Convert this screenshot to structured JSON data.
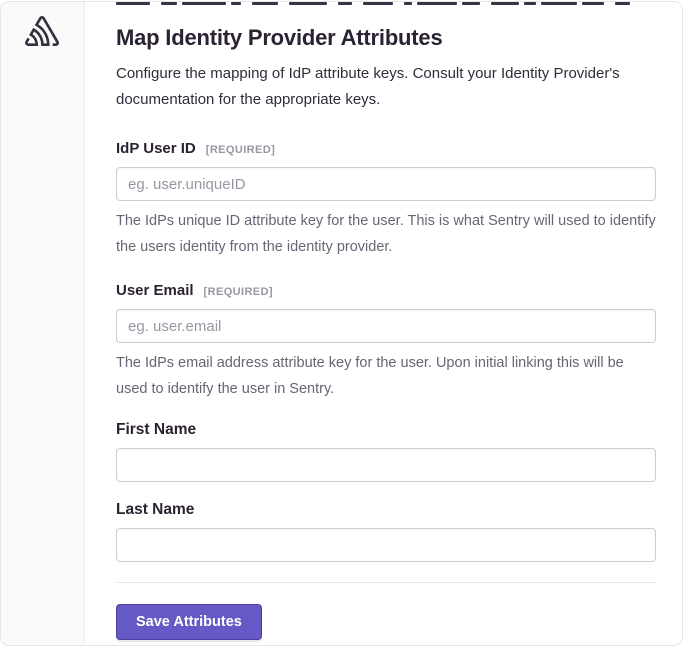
{
  "app": {
    "name": "Sentry"
  },
  "sidebar": {
    "logo": "sentry-logo-icon"
  },
  "page": {
    "title": "Map Identity Provider Attributes",
    "description": "Configure the mapping of IdP attribute keys. Consult your Identity Provider's documentation for the appropriate keys."
  },
  "form": {
    "fields": [
      {
        "label": "IdP User ID",
        "required_tag": "[REQUIRED]",
        "placeholder": "eg. user.uniqueID",
        "value": "",
        "help": "The IdPs unique ID attribute key for the user. This is what Sentry will used to identify the users identity from the identity provider."
      },
      {
        "label": "User Email",
        "required_tag": "[REQUIRED]",
        "placeholder": "eg. user.email",
        "value": "",
        "help": "The IdPs email address attribute key for the user. Upon initial linking this will be used to identify the user in Sentry."
      },
      {
        "label": "First Name",
        "value": ""
      },
      {
        "label": "Last Name",
        "value": ""
      }
    ],
    "save_label": "Save Attributes"
  },
  "colors": {
    "accent": "#6559c5",
    "accent_border": "#4e3d9e",
    "heading": "#2b2233",
    "muted": "#6a6475",
    "tag": "#9a94a4",
    "input_border": "#cfcad6",
    "divider": "#e7e4eb",
    "sidebar_bg": "#fafafa",
    "logo": "#342f3e"
  },
  "decor": {
    "top_cropped_dashes": [
      34,
      16,
      44,
      10,
      26,
      38,
      14,
      30,
      8,
      40,
      18,
      28,
      12,
      36,
      22,
      15
    ]
  }
}
